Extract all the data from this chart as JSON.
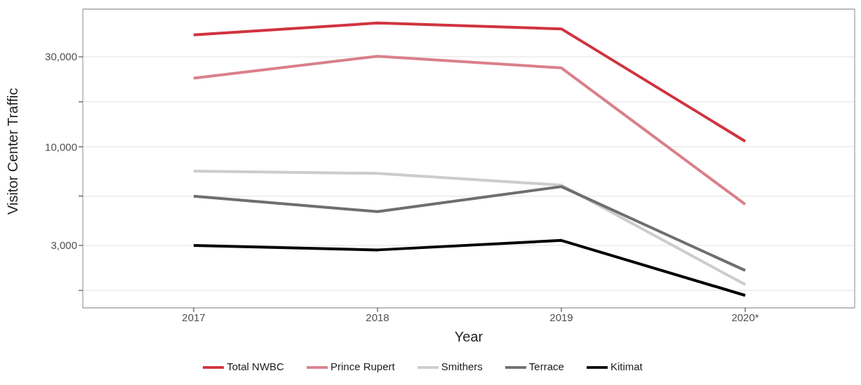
{
  "chart_data": {
    "type": "line",
    "xlabel": "Year",
    "ylabel": "Visitor Center Traffic",
    "categories": [
      "2017",
      "2018",
      "2019",
      "2020*"
    ],
    "series": [
      {
        "name": "Total NWBC",
        "color": "#d0333f",
        "values": [
          39200,
          45300,
          42200,
          10700
        ]
      },
      {
        "name": "Prince Rupert",
        "color": "#d9808a",
        "values": [
          23100,
          30200,
          26200,
          4950
        ]
      },
      {
        "name": "Smithers",
        "color": "#cccccc",
        "values": [
          7430,
          7230,
          6260,
          1860
        ]
      },
      {
        "name": "Terrace",
        "color": "#6e6e6e",
        "values": [
          5470,
          4530,
          6150,
          2210
        ]
      },
      {
        "name": "Kitimat",
        "color": "#000000",
        "values": [
          3000,
          2840,
          3190,
          1630
        ]
      }
    ],
    "log": "y",
    "ylim": [
      1400,
      53700
    ],
    "yticks": [
      {
        "value": 1732,
        "label": null
      },
      {
        "value": 3000,
        "label": "3,000"
      },
      {
        "value": 5477,
        "label": null
      },
      {
        "value": 10000,
        "label": "10,000"
      },
      {
        "value": 17321,
        "label": null
      },
      {
        "value": 30000,
        "label": "30,000"
      }
    ],
    "grid": "y",
    "legend": "bottom",
    "marker": "none",
    "line_style": "solid"
  }
}
